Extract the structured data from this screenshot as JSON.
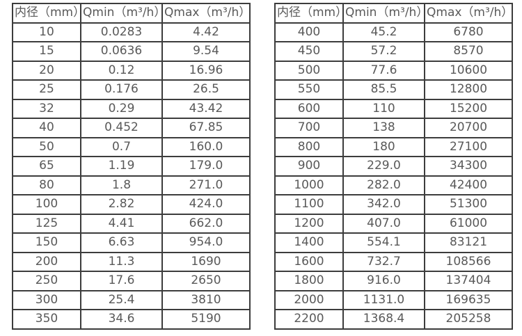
{
  "colors": {
    "background": "#ffffff",
    "border": "#3c3c3c",
    "text": "#595959"
  },
  "tables": [
    {
      "name": "flow-table-small-diameters",
      "headers": [
        "内径（mm）",
        "Qmin（m³/h）",
        "Qmax（m³/h）"
      ],
      "rows": [
        [
          "10",
          "0.0283",
          "4.42"
        ],
        [
          "15",
          "0.0636",
          "9.54"
        ],
        [
          "20",
          "0.12",
          "16.96"
        ],
        [
          "25",
          "0.176",
          "26.5"
        ],
        [
          "32",
          "0.29",
          "43.42"
        ],
        [
          "40",
          "0.452",
          "67.85"
        ],
        [
          "50",
          "0.7",
          "160.0"
        ],
        [
          "65",
          "1.19",
          "179.0"
        ],
        [
          "80",
          "1.8",
          "271.0"
        ],
        [
          "100",
          "2.82",
          "424.0"
        ],
        [
          "125",
          "4.41",
          "662.0"
        ],
        [
          "150",
          "6.63",
          "954.0"
        ],
        [
          "200",
          "11.3",
          "1690"
        ],
        [
          "250",
          "17.6",
          "2650"
        ],
        [
          "300",
          "25.4",
          "3810"
        ],
        [
          "350",
          "34.6",
          "5190"
        ]
      ]
    },
    {
      "name": "flow-table-large-diameters",
      "headers": [
        "内径（mm）",
        "Qmin（m³/h）",
        "Qmax（m³/h）"
      ],
      "rows": [
        [
          "400",
          "45.2",
          "6780"
        ],
        [
          "450",
          "57.2",
          "8570"
        ],
        [
          "500",
          "77.6",
          "10600"
        ],
        [
          "550",
          "85.5",
          "12800"
        ],
        [
          "600",
          "110",
          "15200"
        ],
        [
          "700",
          "138",
          "20700"
        ],
        [
          "800",
          "180",
          "27100"
        ],
        [
          "900",
          "229.0",
          "34300"
        ],
        [
          "1000",
          "282.0",
          "42400"
        ],
        [
          "1100",
          "342.0",
          "51300"
        ],
        [
          "1200",
          "407.0",
          "61000"
        ],
        [
          "1400",
          "554.1",
          "83121"
        ],
        [
          "1600",
          "732.7",
          "108566"
        ],
        [
          "1800",
          "916.0",
          "137404"
        ],
        [
          "2000",
          "1131.0",
          "169635"
        ],
        [
          "2200",
          "1368.4",
          "205258"
        ]
      ]
    }
  ]
}
